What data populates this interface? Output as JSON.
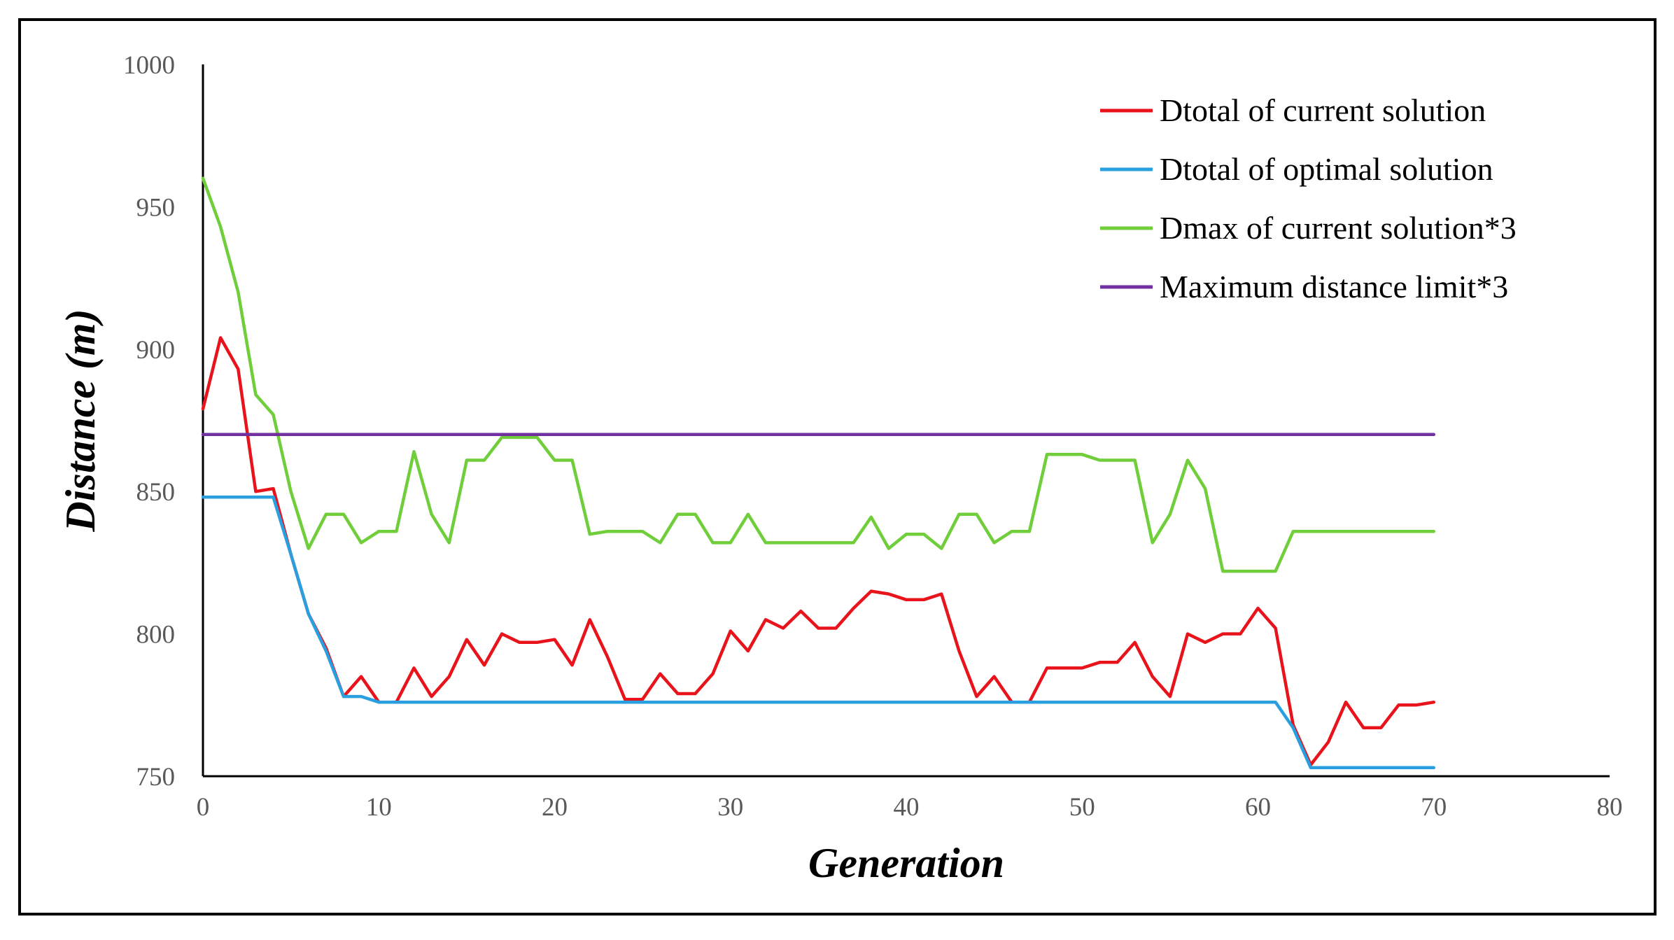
{
  "chart_data": {
    "type": "line",
    "title": "",
    "xlabel": "Generation",
    "ylabel": "Distance (m)",
    "xlim": [
      0,
      80
    ],
    "ylim": [
      750,
      1000
    ],
    "x_ticks": [
      "0",
      "10",
      "20",
      "30",
      "40",
      "50",
      "60",
      "70",
      "80"
    ],
    "y_ticks": [
      "750",
      "800",
      "850",
      "900",
      "950",
      "1000"
    ],
    "grid": false,
    "legend_position": "top-right",
    "series": [
      {
        "name": "Dtotal of current solution",
        "color": "#e8131b",
        "x": [
          0,
          1,
          2,
          3,
          4,
          5,
          6,
          7,
          8,
          9,
          10,
          11,
          12,
          13,
          14,
          15,
          16,
          17,
          18,
          19,
          20,
          21,
          22,
          23,
          24,
          25,
          26,
          27,
          28,
          29,
          30,
          31,
          32,
          33,
          34,
          35,
          36,
          37,
          38,
          39,
          40,
          41,
          42,
          43,
          44,
          45,
          46,
          47,
          48,
          49,
          50,
          51,
          52,
          53,
          54,
          55,
          56,
          57,
          58,
          59,
          60,
          61,
          62,
          63,
          64,
          65,
          66,
          67,
          68,
          69,
          70
        ],
        "values": [
          879,
          904,
          893,
          850,
          851,
          828,
          807,
          795,
          778,
          785,
          776,
          776,
          788,
          778,
          785,
          798,
          789,
          800,
          797,
          797,
          798,
          789,
          805,
          792,
          777,
          777,
          786,
          779,
          779,
          786,
          801,
          794,
          805,
          802,
          808,
          802,
          802,
          809,
          815,
          814,
          812,
          812,
          814,
          794,
          778,
          785,
          776,
          776,
          788,
          788,
          788,
          790,
          790,
          797,
          785,
          778,
          800,
          797,
          800,
          800,
          809,
          802,
          768,
          754,
          762,
          776,
          767,
          767,
          775,
          775,
          776
        ]
      },
      {
        "name": "Dtotal of optimal solution",
        "color": "#2a9fe0",
        "x": [
          0,
          1,
          2,
          3,
          4,
          5,
          6,
          7,
          8,
          9,
          10,
          11,
          12,
          13,
          14,
          15,
          16,
          17,
          18,
          19,
          20,
          21,
          22,
          23,
          24,
          25,
          26,
          27,
          28,
          29,
          30,
          31,
          32,
          33,
          34,
          35,
          36,
          37,
          38,
          39,
          40,
          41,
          42,
          43,
          44,
          45,
          46,
          47,
          48,
          49,
          50,
          51,
          52,
          53,
          54,
          55,
          56,
          57,
          58,
          59,
          60,
          61,
          62,
          63,
          64,
          65,
          66,
          67,
          68,
          69,
          70
        ],
        "values": [
          848,
          848,
          848,
          848,
          848,
          828,
          807,
          794,
          778,
          778,
          776,
          776,
          776,
          776,
          776,
          776,
          776,
          776,
          776,
          776,
          776,
          776,
          776,
          776,
          776,
          776,
          776,
          776,
          776,
          776,
          776,
          776,
          776,
          776,
          776,
          776,
          776,
          776,
          776,
          776,
          776,
          776,
          776,
          776,
          776,
          776,
          776,
          776,
          776,
          776,
          776,
          776,
          776,
          776,
          776,
          776,
          776,
          776,
          776,
          776,
          776,
          776,
          767,
          753,
          753,
          753,
          753,
          753,
          753,
          753,
          753
        ]
      },
      {
        "name": "Dmax of current solution*3",
        "color": "#6fce3a",
        "x": [
          0,
          1,
          2,
          3,
          4,
          5,
          6,
          7,
          8,
          9,
          10,
          11,
          12,
          13,
          14,
          15,
          16,
          17,
          18,
          19,
          20,
          21,
          22,
          23,
          24,
          25,
          26,
          27,
          28,
          29,
          30,
          31,
          32,
          33,
          34,
          35,
          36,
          37,
          38,
          39,
          40,
          41,
          42,
          43,
          44,
          45,
          46,
          47,
          48,
          49,
          50,
          51,
          52,
          53,
          54,
          55,
          56,
          57,
          58,
          59,
          60,
          61,
          62,
          63,
          64,
          65,
          66,
          67,
          68,
          69,
          70
        ],
        "values": [
          960,
          943,
          920,
          884,
          877,
          850,
          830,
          842,
          842,
          832,
          836,
          836,
          864,
          842,
          832,
          861,
          861,
          869,
          869,
          869,
          861,
          861,
          835,
          836,
          836,
          836,
          832,
          842,
          842,
          832,
          832,
          842,
          832,
          832,
          832,
          832,
          832,
          832,
          841,
          830,
          835,
          835,
          830,
          842,
          842,
          832,
          836,
          836,
          863,
          863,
          863,
          861,
          861,
          861,
          832,
          842,
          861,
          851,
          822,
          822,
          822,
          822,
          836,
          836,
          836,
          836,
          836,
          836,
          836,
          836,
          836
        ]
      },
      {
        "name": "Maximum distance limit*3",
        "color": "#7030a0",
        "x": [
          0,
          70
        ],
        "values": [
          870,
          870
        ]
      }
    ]
  }
}
